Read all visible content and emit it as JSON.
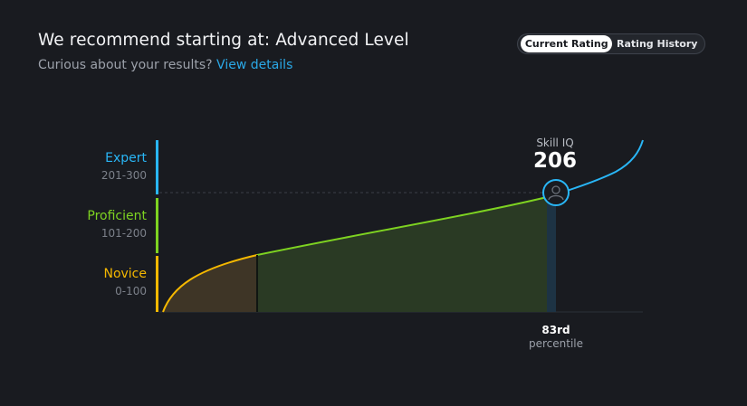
{
  "header": {
    "title": "We recommend starting at: Advanced Level",
    "subtitle_prefix": "Curious about your results?",
    "details_link": "View details"
  },
  "toggle": {
    "current_rating": "Current Rating",
    "rating_history": "Rating History",
    "selected": "Current Rating"
  },
  "colors": {
    "expert": "#29b6f6",
    "proficient": "#7ed321",
    "novice": "#f5b800",
    "background": "#191b20"
  },
  "chart_data": {
    "type": "area",
    "bands": [
      {
        "name": "Expert",
        "range": "201-300",
        "color": "#29b6f6"
      },
      {
        "name": "Proficient",
        "range": "101-200",
        "color": "#7ed321"
      },
      {
        "name": "Novice",
        "range": "0-100",
        "color": "#f5b800"
      }
    ],
    "skill_iq_label": "Skill IQ",
    "skill_iq": 206,
    "percentile": 83,
    "percentile_value": "83rd",
    "percentile_label": "percentile",
    "avatar_icon": "user-icon"
  }
}
